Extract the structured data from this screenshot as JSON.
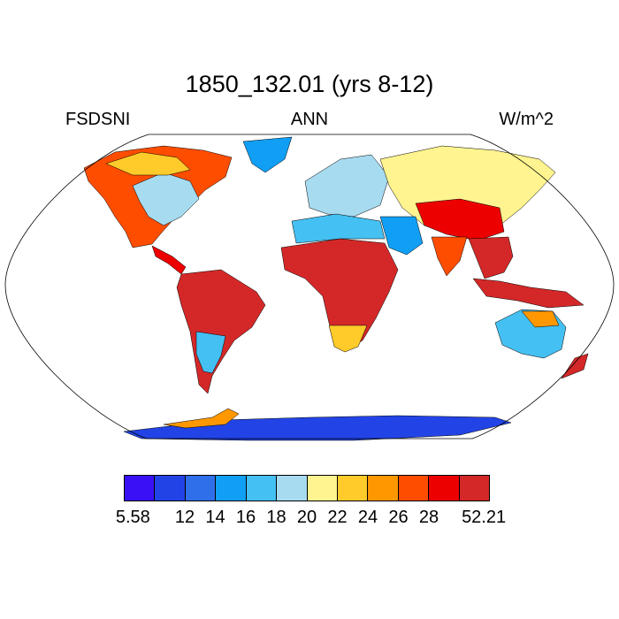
{
  "title": "1850_132.01 (yrs 8-12)",
  "left_label": "FSDSNI",
  "center_label": "ANN",
  "right_label": "W/m^2",
  "colorbar": {
    "colors": [
      "#3a10f7",
      "#2244e6",
      "#2f70ea",
      "#109ff4",
      "#45c0f2",
      "#a6dbf0",
      "#fff48f",
      "#ffcb2a",
      "#ff9800",
      "#ff4d00",
      "#ec0000",
      "#d42828"
    ],
    "labels": [
      "5.58",
      "12",
      "14",
      "16",
      "18",
      "20",
      "22",
      "24",
      "26",
      "28",
      "52.21"
    ]
  },
  "map": {
    "projection": "Robinson",
    "ocean_color": "#ffffff",
    "outline_color": "#000000"
  }
}
